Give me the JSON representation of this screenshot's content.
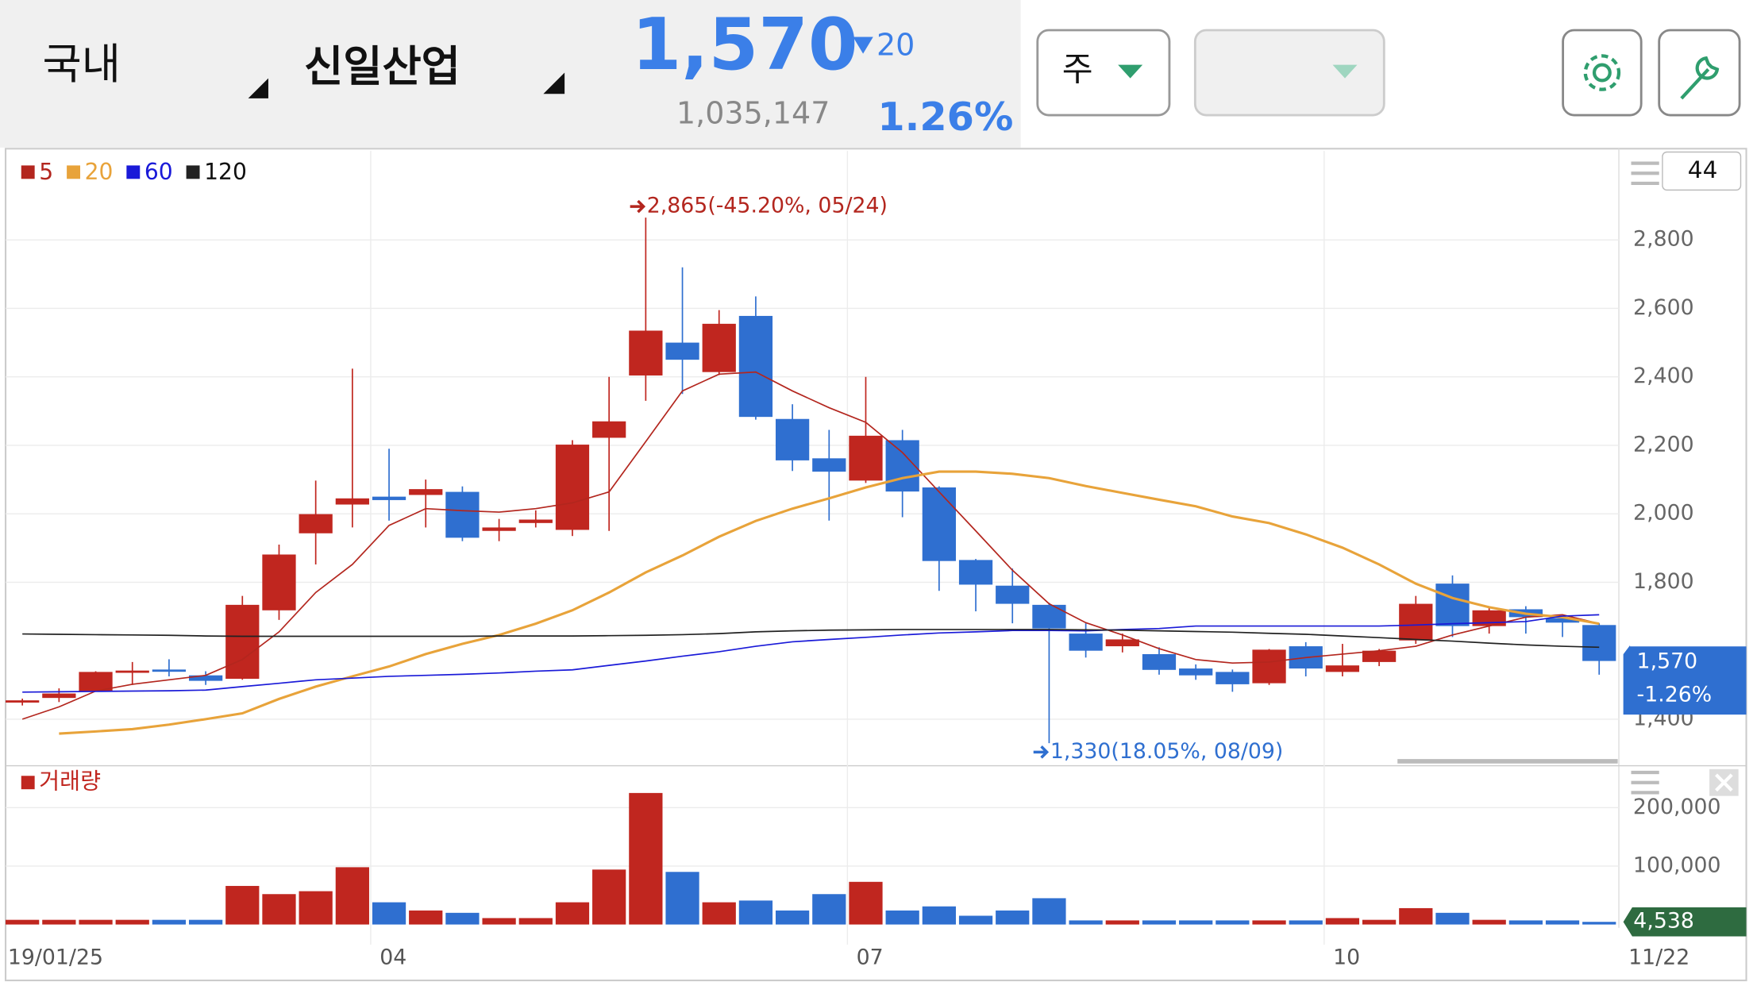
{
  "header": {
    "market": "국내",
    "stock": "신일산업",
    "price": "1,570",
    "change": "20",
    "volume": "1,035,147",
    "change_rate": "1.26%"
  },
  "controls": {
    "period": "주",
    "count": 44
  },
  "chart_data": {
    "type": "candlestick",
    "categories": [
      "19/01/25",
      null,
      null,
      null,
      null,
      null,
      null,
      null,
      null,
      null,
      "04",
      null,
      null,
      null,
      null,
      null,
      null,
      null,
      null,
      null,
      null,
      null,
      null,
      "07",
      null,
      null,
      null,
      null,
      null,
      null,
      null,
      null,
      null,
      null,
      null,
      null,
      "10",
      null,
      null,
      null,
      null,
      null,
      null,
      "11/22"
    ],
    "open": [
      1450,
      1462,
      1482,
      1538,
      1545,
      1528,
      1518,
      1718,
      1943,
      2027,
      2050,
      2055,
      2064,
      1950,
      1973,
      1953,
      2222,
      2404,
      2500,
      2414,
      2578,
      2277,
      2162,
      2097,
      2215,
      2077,
      1865,
      1790,
      1734,
      1650,
      1613,
      1590,
      1548,
      1538,
      1505,
      1613,
      1538,
      1567,
      1630,
      1796,
      1672,
      1721,
      1695,
      1675
    ],
    "high": [
      1460,
      1490,
      1540,
      1567,
      1575,
      1540,
      1760,
      1910,
      2097,
      2424,
      2190,
      2100,
      2080,
      1985,
      2010,
      2215,
      2400,
      2865,
      2720,
      2595,
      2635,
      2320,
      2245,
      2400,
      2245,
      2080,
      1868,
      1840,
      1740,
      1680,
      1650,
      1610,
      1560,
      1545,
      1605,
      1625,
      1620,
      1605,
      1760,
      1820,
      1725,
      1730,
      1700,
      1680
    ],
    "low": [
      1440,
      1450,
      1480,
      1500,
      1525,
      1500,
      1515,
      1690,
      1852,
      1960,
      1980,
      1960,
      1920,
      1920,
      1960,
      1935,
      1950,
      2330,
      2350,
      2405,
      2275,
      2125,
      1980,
      2090,
      1990,
      1775,
      1715,
      1680,
      1330,
      1580,
      1595,
      1530,
      1515,
      1480,
      1500,
      1525,
      1525,
      1555,
      1620,
      1640,
      1650,
      1650,
      1640,
      1530
    ],
    "close": [
      1455,
      1475,
      1538,
      1542,
      1540,
      1512,
      1734,
      1881,
      1999,
      2045,
      2040,
      2072,
      1930,
      1960,
      1983,
      2202,
      2270,
      2535,
      2450,
      2555,
      2283,
      2156,
      2123,
      2228,
      2065,
      1862,
      1793,
      1737,
      1665,
      1600,
      1633,
      1544,
      1528,
      1502,
      1603,
      1548,
      1557,
      1600,
      1737,
      1672,
      1718,
      1698,
      1682,
      1570
    ],
    "up_color": "#c0261f",
    "down_color": "#2f6fd0",
    "series": [
      {
        "name": "5",
        "color": "#b3261e",
        "values": [
          1400,
          1436,
          1482,
          1502,
          1515,
          1528,
          1574,
          1655,
          1770,
          1852,
          1966,
          2015,
          2009,
          2005,
          2015,
          2032,
          2064,
          2211,
          2359,
          2408,
          2414,
          2359,
          2310,
          2267,
          2179,
          2064,
          1950,
          1835,
          1737,
          1682,
          1646,
          1606,
          1574,
          1564,
          1567,
          1580,
          1590,
          1600,
          1613,
          1646,
          1672,
          1698,
          1705,
          1679
        ]
      },
      {
        "name": "20",
        "color": "#e8a33a",
        "values": [
          null,
          1358,
          1364,
          1371,
          1384,
          1400,
          1417,
          1459,
          1495,
          1525,
          1554,
          1590,
          1620,
          1646,
          1679,
          1718,
          1770,
          1829,
          1878,
          1933,
          1979,
          2015,
          2045,
          2077,
          2104,
          2123,
          2123,
          2117,
          2104,
          2081,
          2061,
          2041,
          2022,
          1992,
          1973,
          1940,
          1901,
          1852,
          1796,
          1754,
          1727,
          1708,
          1698,
          1679
        ]
      },
      {
        "name": "60",
        "color": "#1a1ad8",
        "values": [
          1479,
          1480,
          1481,
          1482,
          1483,
          1485,
          1495,
          1505,
          1515,
          1520,
          1525,
          1528,
          1531,
          1535,
          1540,
          1544,
          1557,
          1570,
          1584,
          1597,
          1613,
          1626,
          1633,
          1639,
          1646,
          1652,
          1655,
          1659,
          1659,
          1658,
          1662,
          1665,
          1672,
          1672,
          1672,
          1672,
          1672,
          1672,
          1675,
          1679,
          1682,
          1685,
          1701,
          1705
        ]
      },
      {
        "name": "120",
        "color": "#222222",
        "values": [
          1649,
          1648,
          1647,
          1646,
          1645,
          1643,
          1642,
          1642,
          1642,
          1642,
          1642,
          1642,
          1642,
          1643,
          1643,
          1643,
          1644,
          1645,
          1647,
          1650,
          1655,
          1658,
          1660,
          1661,
          1662,
          1662,
          1662,
          1662,
          1662,
          1661,
          1660,
          1658,
          1656,
          1654,
          1651,
          1648,
          1643,
          1638,
          1633,
          1628,
          1622,
          1617,
          1613,
          1610
        ]
      }
    ],
    "ylim": [
      1290,
      3060
    ],
    "yticks": [
      {
        "value": 1400,
        "label": "1,400"
      },
      {
        "value": 1800,
        "label": "1,800"
      },
      {
        "value": 2000,
        "label": "2,000"
      },
      {
        "value": 2200,
        "label": "2,200"
      },
      {
        "value": 2400,
        "label": "2,400"
      },
      {
        "value": 2600,
        "label": "2,600"
      },
      {
        "value": 2800,
        "label": "2,800"
      }
    ],
    "grid": true,
    "annotations": [
      {
        "text": "2,865(-45.20%, 05/24)",
        "value": 2865,
        "color": "#b3261e"
      },
      {
        "text": "1,330(18.05%, 08/09)",
        "value": 1330,
        "color": "#2f6fd0"
      }
    ],
    "last_price_label": "1,570",
    "last_change_label": "-1.26%",
    "volume": {
      "name": "거래량",
      "values": [
        8000,
        8000,
        8000,
        8000,
        8000,
        8000,
        66000,
        52000,
        57000,
        98000,
        38000,
        24000,
        20000,
        11000,
        11000,
        38000,
        94000,
        225000,
        90000,
        38000,
        41000,
        24000,
        52000,
        73000,
        24000,
        31000,
        15000,
        24000,
        45000,
        7000,
        7000,
        7000,
        7000,
        7000,
        7000,
        7000,
        11000,
        8000,
        28000,
        20000,
        8000,
        7000,
        7000,
        4538
      ],
      "ylim": [
        0,
        262000
      ],
      "yticks": [
        {
          "value": 100000,
          "label": "100,000"
        },
        {
          "value": 200000,
          "label": "200,000"
        }
      ],
      "last_label": "4,538"
    }
  }
}
